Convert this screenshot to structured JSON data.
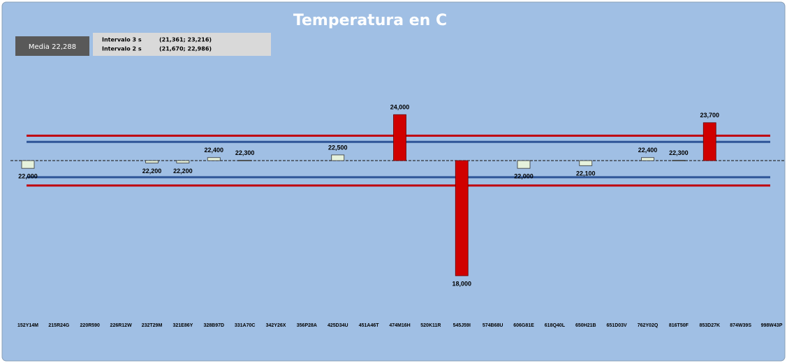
{
  "chart_data": {
    "type": "deviation-bar",
    "title": "Temperatura en  C",
    "mean": 22.288,
    "mean_label": "Media 22,288",
    "intervals": [
      {
        "name": "Intervalo 3 s",
        "label": "(21,361; 23,216)",
        "range": [
          21.361,
          23.216
        ],
        "color": "#c0000e"
      },
      {
        "name": "Intervalo 2 s",
        "label": "(21,670; 22,986)",
        "range": [
          21.67,
          22.986
        ],
        "color": "#2e5597"
      }
    ],
    "categories": [
      "152Y14M",
      "215R24G",
      "220R590",
      "226R12W",
      "232T29M",
      "321E86Y",
      "328B97D",
      "331A70C",
      "342Y26X",
      "356P28A",
      "425D34U",
      "451A46T",
      "474M16H",
      "520K11R",
      "545J59I",
      "574B68U",
      "606G81E",
      "618Q40L",
      "650H21B",
      "651D03V",
      "762Y02Q",
      "816T50F",
      "853D27K",
      "874W39S",
      "998W43P"
    ],
    "values": [
      22,
      null,
      null,
      null,
      22.2,
      22.2,
      22.4,
      22.3,
      null,
      null,
      22.5,
      null,
      24,
      null,
      18,
      null,
      22,
      null,
      22.1,
      null,
      22.4,
      22.3,
      23.7,
      null,
      null
    ],
    "value_labels": [
      "22,000",
      null,
      null,
      null,
      "22,200",
      "22,200",
      "22,400",
      "22,300",
      null,
      null,
      "22,500",
      null,
      "24,000",
      null,
      "18,000",
      null,
      "22,000",
      null,
      "22,100",
      null,
      "22,400",
      "22,300",
      "23,700",
      null,
      null
    ],
    "color": "#e6f2dc",
    "outlier_color": "#d00000",
    "ylim": [
      17.35,
      25.15
    ]
  }
}
